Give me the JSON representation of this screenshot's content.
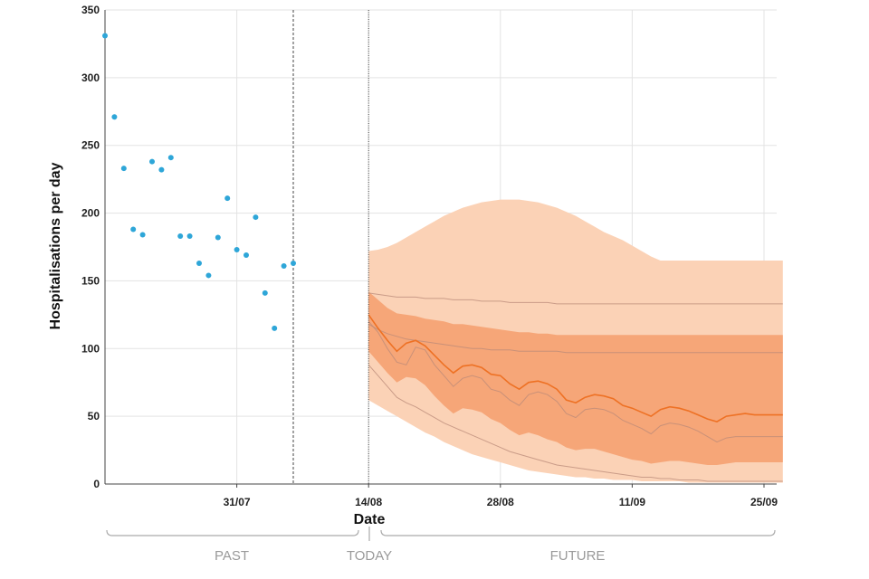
{
  "chart_data": {
    "type": "line",
    "xlabel": "Date",
    "ylabel": "Hospitalisations per day",
    "ylim": [
      0,
      350
    ],
    "y_ticks": [
      0,
      50,
      100,
      150,
      200,
      250,
      300,
      350
    ],
    "x_range_days": [
      0,
      70
    ],
    "x_ticks": [
      {
        "day": 14,
        "label": "31/07"
      },
      {
        "day": 28,
        "label": "14/08"
      },
      {
        "day": 42,
        "label": "28/08"
      },
      {
        "day": 56,
        "label": "11/09"
      },
      {
        "day": 70,
        "label": "25/09"
      }
    ],
    "past_end_day": 20,
    "today_day": 28,
    "periods": {
      "past": "PAST",
      "today": "TODAY",
      "future": "FUTURE"
    },
    "colors": {
      "observed": "#2ea6d8",
      "median": "#ee7124",
      "band_50": "#f6a678",
      "band_90": "#fbd2b6",
      "scenario_line": "#b98a78"
    },
    "observed": {
      "x": [
        0,
        1,
        2,
        3,
        4,
        5,
        6,
        7,
        8,
        9,
        10,
        11,
        12,
        13,
        14,
        15,
        16,
        17,
        18,
        19,
        20
      ],
      "y": [
        331,
        271,
        233,
        188,
        184,
        238,
        232,
        241,
        183,
        183,
        163,
        154,
        182,
        211,
        173,
        169,
        197,
        141,
        115,
        161,
        163
      ]
    },
    "projection": {
      "x": [
        28,
        29,
        30,
        31,
        32,
        33,
        34,
        35,
        36,
        37,
        38,
        39,
        40,
        41,
        42,
        43,
        44,
        45,
        46,
        47,
        48,
        49,
        50,
        51,
        52,
        53,
        54,
        55,
        56,
        57,
        58,
        59,
        60,
        61,
        62,
        63,
        64,
        65,
        66,
        67,
        68,
        69,
        70,
        71,
        72
      ],
      "median": [
        125,
        115,
        106,
        98,
        104,
        106,
        102,
        95,
        88,
        82,
        87,
        88,
        86,
        81,
        80,
        74,
        70,
        75,
        76,
        74,
        70,
        62,
        60,
        64,
        66,
        65,
        63,
        58,
        56,
        53,
        50,
        55,
        57,
        56,
        54,
        51,
        48,
        46,
        50,
        51,
        52,
        51,
        51,
        51,
        51
      ],
      "lower_90": [
        62,
        58,
        54,
        50,
        46,
        42,
        38,
        35,
        31,
        28,
        25,
        22,
        20,
        18,
        16,
        14,
        12,
        10,
        9,
        8,
        7,
        6,
        5,
        5,
        4,
        4,
        3,
        3,
        3,
        2,
        2,
        2,
        2,
        2,
        1,
        1,
        1,
        1,
        1,
        1,
        1,
        1,
        1,
        1,
        1
      ],
      "upper_90": [
        172,
        173,
        175,
        178,
        182,
        186,
        190,
        194,
        198,
        201,
        204,
        206,
        208,
        209,
        210,
        210,
        210,
        209,
        208,
        206,
        204,
        201,
        198,
        194,
        190,
        186,
        183,
        180,
        176,
        172,
        168,
        165,
        165,
        165,
        165,
        165,
        165,
        165,
        165,
        165,
        165,
        165,
        165,
        165,
        165
      ],
      "lower_50": [
        98,
        90,
        82,
        75,
        79,
        78,
        73,
        65,
        58,
        52,
        56,
        55,
        53,
        48,
        45,
        40,
        36,
        38,
        36,
        33,
        31,
        27,
        25,
        26,
        26,
        24,
        22,
        20,
        18,
        17,
        15,
        16,
        17,
        17,
        16,
        15,
        14,
        14,
        15,
        16,
        16,
        16,
        16,
        16,
        16
      ],
      "upper_50": [
        142,
        136,
        130,
        126,
        125,
        124,
        122,
        121,
        120,
        118,
        118,
        117,
        116,
        115,
        114,
        113,
        112,
        112,
        111,
        111,
        110,
        110,
        110,
        110,
        110,
        110,
        110,
        110,
        110,
        110,
        110,
        110,
        110,
        110,
        110,
        110,
        110,
        110,
        110,
        110,
        110,
        110,
        110,
        110,
        110
      ],
      "scenario_lines": [
        [
          141,
          140,
          139,
          138,
          138,
          138,
          137,
          137,
          137,
          136,
          136,
          136,
          135,
          135,
          135,
          134,
          134,
          134,
          134,
          134,
          133,
          133,
          133,
          133,
          133,
          133,
          133,
          133,
          133,
          133,
          133,
          133,
          133,
          133,
          133,
          133,
          133,
          133,
          133,
          133,
          133,
          133,
          133,
          133,
          133
        ],
        [
          118,
          114,
          111,
          109,
          107,
          106,
          105,
          104,
          103,
          102,
          101,
          100,
          100,
          99,
          99,
          99,
          98,
          98,
          98,
          98,
          98,
          97,
          97,
          97,
          97,
          97,
          97,
          97,
          97,
          97,
          97,
          97,
          97,
          97,
          97,
          97,
          97,
          97,
          97,
          97,
          97,
          97,
          97,
          97,
          97
        ],
        [
          120,
          112,
          100,
          90,
          88,
          101,
          99,
          88,
          80,
          72,
          78,
          80,
          78,
          70,
          68,
          62,
          58,
          66,
          68,
          66,
          61,
          52,
          49,
          55,
          56,
          55,
          52,
          47,
          44,
          41,
          37,
          43,
          45,
          44,
          42,
          39,
          35,
          31,
          34,
          35,
          35,
          35,
          35,
          35,
          35
        ],
        [
          88,
          80,
          72,
          64,
          60,
          57,
          53,
          49,
          45,
          42,
          39,
          36,
          33,
          30,
          27,
          24,
          22,
          20,
          18,
          16,
          14,
          13,
          12,
          11,
          10,
          9,
          8,
          7,
          6,
          5,
          5,
          4,
          4,
          3,
          3,
          3,
          2,
          2,
          2,
          2,
          2,
          2,
          2,
          2,
          2
        ]
      ]
    }
  }
}
